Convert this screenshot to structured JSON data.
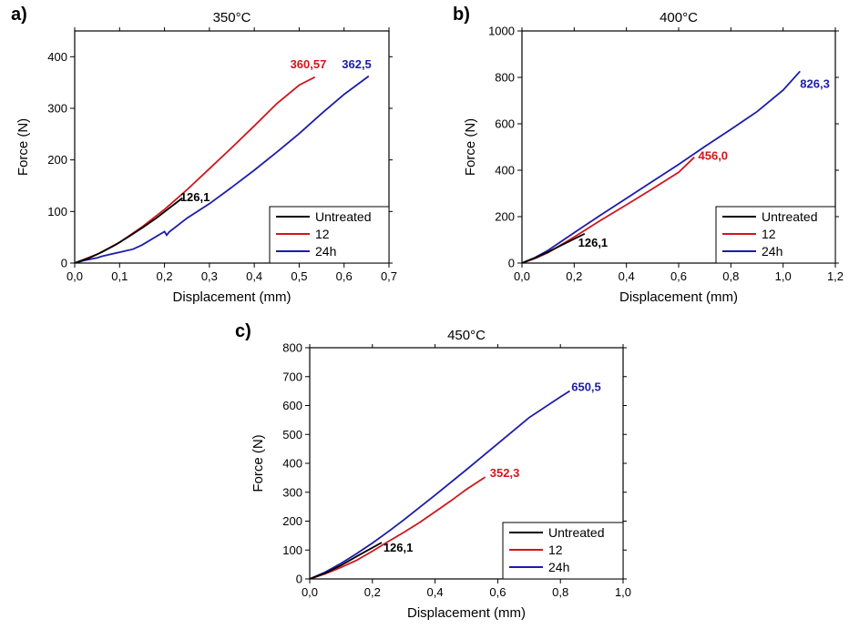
{
  "chart_data": [
    {
      "type": "line",
      "panel_label": "a)",
      "title": "350°C",
      "xlabel": "Displacement (mm)",
      "ylabel": "Force (N)",
      "xlim": [
        0,
        0.7
      ],
      "ylim": [
        0,
        450
      ],
      "xticks": [
        0,
        0.1,
        0.2,
        0.3,
        0.4,
        0.5,
        0.6,
        0.7
      ],
      "xtick_labels": [
        "0,0",
        "0,1",
        "0,2",
        "0,3",
        "0,4",
        "0,5",
        "0,6",
        "0,7"
      ],
      "yticks": [
        0,
        100,
        200,
        300,
        400
      ],
      "ytick_labels": [
        "0",
        "100",
        "200",
        "300",
        "400"
      ],
      "legend_position": "bottom-right",
      "series": [
        {
          "name": "Untreated",
          "color": "#000000",
          "x": [
            0,
            0.03,
            0.06,
            0.09,
            0.12,
            0.15,
            0.18,
            0.21,
            0.24
          ],
          "y": [
            0,
            9,
            21,
            35,
            51,
            68,
            86,
            106,
            126.1
          ]
        },
        {
          "name": "12",
          "color": "#d0161c",
          "x": [
            0,
            0.05,
            0.1,
            0.15,
            0.2,
            0.25,
            0.3,
            0.35,
            0.4,
            0.45,
            0.5,
            0.535
          ],
          "y": [
            0,
            17,
            40,
            70,
            104,
            142,
            183,
            224,
            266,
            309,
            345,
            360.57
          ]
        },
        {
          "name": "24h",
          "color": "#1c1ca8",
          "x": [
            0,
            0.02,
            0.05,
            0.06,
            0.1,
            0.13,
            0.15,
            0.2,
            0.205,
            0.21,
            0.25,
            0.3,
            0.35,
            0.4,
            0.45,
            0.5,
            0.55,
            0.6,
            0.655
          ],
          "y": [
            0,
            5,
            10,
            13,
            21,
            27,
            35,
            61,
            54,
            60,
            87,
            115,
            147,
            180,
            215,
            251,
            290,
            327,
            362.5
          ]
        }
      ],
      "annotations": [
        {
          "text": "126,1",
          "x": 0.235,
          "y": 120,
          "color": "#000000"
        },
        {
          "text": "360,57",
          "x": 0.48,
          "y": 378,
          "color": "#d0161c"
        },
        {
          "text": "362,5",
          "x": 0.595,
          "y": 378,
          "color": "#1c1ca8"
        }
      ]
    },
    {
      "type": "line",
      "panel_label": "b)",
      "title": "400°C",
      "xlabel": "Displacement (mm)",
      "ylabel": "Force (N)",
      "xlim": [
        0,
        1.2
      ],
      "ylim": [
        0,
        1000
      ],
      "xticks": [
        0,
        0.2,
        0.4,
        0.6,
        0.8,
        1.0,
        1.2
      ],
      "xtick_labels": [
        "0,0",
        "0,2",
        "0,4",
        "0,6",
        "0,8",
        "1,0",
        "1,2"
      ],
      "yticks": [
        0,
        200,
        400,
        600,
        800,
        1000
      ],
      "ytick_labels": [
        "0",
        "200",
        "400",
        "600",
        "800",
        "1000"
      ],
      "legend_position": "bottom-right",
      "series": [
        {
          "name": "Untreated",
          "color": "#000000",
          "x": [
            0,
            0.05,
            0.1,
            0.15,
            0.2,
            0.24
          ],
          "y": [
            0,
            22,
            48,
            76,
            104,
            126.1
          ]
        },
        {
          "name": "12",
          "color": "#d0161c",
          "x": [
            0,
            0.05,
            0.1,
            0.2,
            0.3,
            0.4,
            0.5,
            0.6,
            0.66
          ],
          "y": [
            0,
            20,
            45,
            112,
            183,
            251,
            320,
            391,
            456.0
          ]
        },
        {
          "name": "24h",
          "color": "#1c1ca8",
          "x": [
            0,
            0.05,
            0.1,
            0.2,
            0.3,
            0.4,
            0.5,
            0.6,
            0.7,
            0.8,
            0.9,
            1.0,
            1.065
          ],
          "y": [
            0,
            24,
            55,
            131,
            206,
            279,
            352,
            425,
            502,
            576,
            652,
            745,
            826.3
          ]
        }
      ],
      "annotations": [
        {
          "text": "126,1",
          "x": 0.215,
          "y": 70,
          "color": "#000000"
        },
        {
          "text": "456,0",
          "x": 0.675,
          "y": 445,
          "color": "#d0161c"
        },
        {
          "text": "826,3",
          "x": 1.065,
          "y": 755,
          "color": "#1c1ca8"
        }
      ]
    },
    {
      "type": "line",
      "panel_label": "c)",
      "title": "450°C",
      "xlabel": "Displacement (mm)",
      "ylabel": "Force (N)",
      "xlim": [
        0,
        1.0
      ],
      "ylim": [
        0,
        800
      ],
      "xticks": [
        0,
        0.2,
        0.4,
        0.6,
        0.8,
        1.0
      ],
      "xtick_labels": [
        "0,0",
        "0,2",
        "0,4",
        "0,6",
        "0,8",
        "1,0"
      ],
      "yticks": [
        0,
        100,
        200,
        300,
        400,
        500,
        600,
        700,
        800
      ],
      "ytick_labels": [
        "0",
        "100",
        "200",
        "300",
        "400",
        "500",
        "600",
        "700",
        "800"
      ],
      "legend_position": "bottom-right",
      "series": [
        {
          "name": "Untreated",
          "color": "#000000",
          "x": [
            0,
            0.05,
            0.1,
            0.15,
            0.2,
            0.23
          ],
          "y": [
            0,
            20,
            47,
            78,
            108,
            126.1
          ]
        },
        {
          "name": "12",
          "color": "#d0161c",
          "x": [
            0,
            0.05,
            0.1,
            0.15,
            0.2,
            0.25,
            0.3,
            0.35,
            0.4,
            0.45,
            0.5,
            0.56
          ],
          "y": [
            0,
            18,
            40,
            65,
            96,
            129,
            161,
            195,
            232,
            270,
            310,
            352.3
          ]
        },
        {
          "name": "24h",
          "color": "#1c1ca8",
          "x": [
            0,
            0.05,
            0.1,
            0.15,
            0.2,
            0.25,
            0.3,
            0.4,
            0.5,
            0.6,
            0.7,
            0.8,
            0.83
          ],
          "y": [
            0,
            24,
            54,
            88,
            124,
            163,
            204,
            290,
            378,
            468,
            558,
            630,
            650.5
          ]
        }
      ],
      "annotations": [
        {
          "text": "126,1",
          "x": 0.235,
          "y": 95,
          "color": "#000000"
        },
        {
          "text": "352,3",
          "x": 0.575,
          "y": 352,
          "color": "#d0161c"
        },
        {
          "text": "650,5",
          "x": 0.835,
          "y": 650,
          "color": "#1c1ca8"
        }
      ]
    }
  ]
}
